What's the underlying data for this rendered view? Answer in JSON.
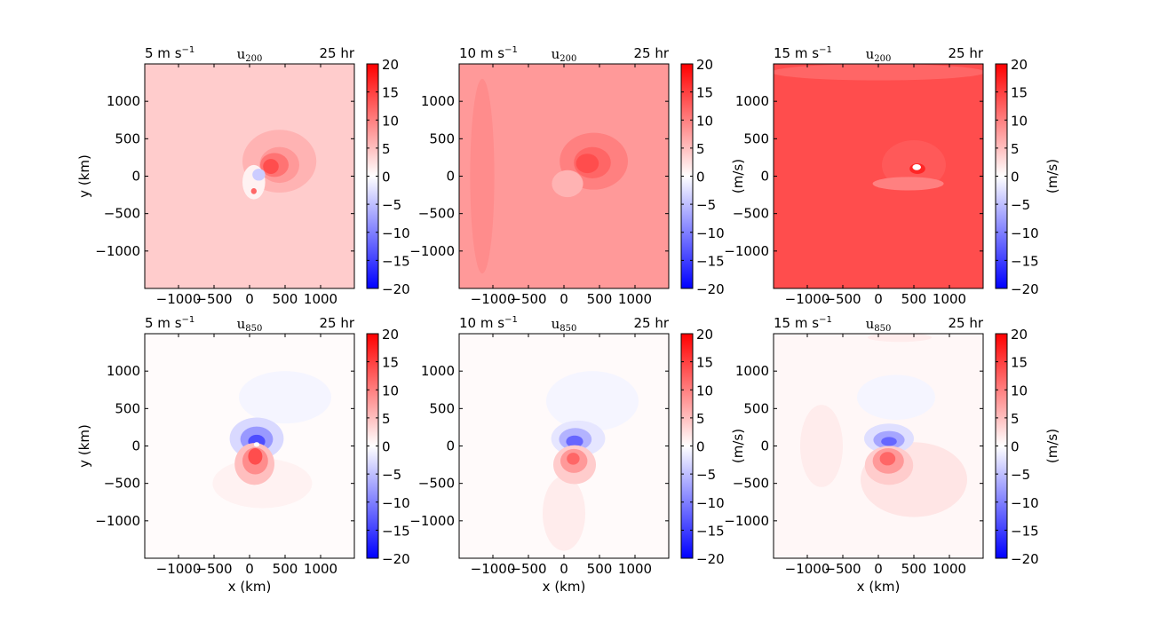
{
  "figure": {
    "cmap_stops": [
      "#0000ff",
      "#ffffff",
      "#ff0000"
    ]
  },
  "chart_data": [
    {
      "type": "heatmap",
      "left_label": "5 m s",
      "left_sup": "−1",
      "center_label": "u",
      "center_sub": "200",
      "right_label": "25 hr",
      "xlabel": "",
      "ylabel": "y (km)",
      "colorbar_label": "",
      "xlim": [
        -1475,
        1475
      ],
      "ylim": [
        -1500,
        1500
      ],
      "xticks": [
        -1000,
        -500,
        0,
        500,
        1000
      ],
      "yticks": [
        -1000,
        -500,
        0,
        500,
        1000
      ],
      "clim": [
        -20,
        20
      ],
      "cbar_ticks": [
        -20,
        -15,
        -10,
        -5,
        0,
        5,
        10,
        15,
        20
      ],
      "background_value": 4,
      "features": [
        {
          "x": 420,
          "y": 200,
          "rx": 520,
          "ry": 420,
          "value": 6
        },
        {
          "x": 420,
          "y": 150,
          "rx": 280,
          "ry": 240,
          "value": 8
        },
        {
          "x": 350,
          "y": 150,
          "rx": 200,
          "ry": 160,
          "value": 11
        },
        {
          "x": 300,
          "y": 130,
          "rx": 110,
          "ry": 100,
          "value": 14
        },
        {
          "x": 60,
          "y": -80,
          "rx": 160,
          "ry": 230,
          "value": 1
        },
        {
          "x": 130,
          "y": 20,
          "rx": 90,
          "ry": 80,
          "value": -4
        },
        {
          "x": 60,
          "y": -200,
          "rx": 40,
          "ry": 40,
          "value": 12
        }
      ]
    },
    {
      "type": "heatmap",
      "left_label": "10 m s",
      "left_sup": "−1",
      "center_label": "u",
      "center_sub": "200",
      "right_label": "25 hr",
      "xlabel": "",
      "ylabel": "",
      "colorbar_label": "(m/s)",
      "xlim": [
        -1475,
        1475
      ],
      "ylim": [
        -1500,
        1500
      ],
      "xticks": [
        -1000,
        -500,
        0,
        500,
        1000
      ],
      "yticks": [
        -1000,
        -500,
        0,
        500,
        1000
      ],
      "clim": [
        -20,
        20
      ],
      "cbar_ticks": [
        -20,
        -15,
        -10,
        -5,
        0,
        5,
        10,
        15,
        20
      ],
      "background_value": 8,
      "features": [
        {
          "x": -1150,
          "y": 0,
          "rx": 170,
          "ry": 1300,
          "value": 9
        },
        {
          "x": 420,
          "y": 200,
          "rx": 480,
          "ry": 380,
          "value": 10
        },
        {
          "x": 400,
          "y": 180,
          "rx": 260,
          "ry": 210,
          "value": 12
        },
        {
          "x": 330,
          "y": 170,
          "rx": 160,
          "ry": 130,
          "value": 14
        },
        {
          "x": 50,
          "y": -100,
          "rx": 220,
          "ry": 180,
          "value": 6
        }
      ]
    },
    {
      "type": "heatmap",
      "left_label": "15 m s",
      "left_sup": "−1",
      "center_label": "u",
      "center_sub": "200",
      "right_label": "25 hr",
      "xlabel": "",
      "ylabel": "",
      "colorbar_label": "(m/s)",
      "xlim": [
        -1475,
        1475
      ],
      "ylim": [
        -1500,
        1500
      ],
      "xticks": [
        -1000,
        -500,
        0,
        500,
        1000
      ],
      "yticks": [
        -1000,
        -500,
        0,
        500,
        1000
      ],
      "clim": [
        -20,
        20
      ],
      "cbar_ticks": [
        -20,
        -15,
        -10,
        -5,
        0,
        5,
        10,
        15,
        20
      ],
      "background_value": 14,
      "features": [
        {
          "x": 0,
          "y": 1390,
          "rx": 1500,
          "ry": 110,
          "value": 12
        },
        {
          "x": 500,
          "y": 150,
          "rx": 450,
          "ry": 330,
          "value": 13
        },
        {
          "x": 420,
          "y": -100,
          "rx": 500,
          "ry": 90,
          "value": 10
        },
        {
          "x": 550,
          "y": 100,
          "rx": 110,
          "ry": 70,
          "value": 17
        },
        {
          "x": 540,
          "y": 120,
          "rx": 60,
          "ry": 40,
          "value": 0
        }
      ]
    },
    {
      "type": "heatmap",
      "left_label": "5 m s",
      "left_sup": "−1",
      "center_label": "u",
      "center_sub": "850",
      "right_label": "25 hr",
      "xlabel": "x (km)",
      "ylabel": "y (km)",
      "colorbar_label": "",
      "xlim": [
        -1475,
        1475
      ],
      "ylim": [
        -1500,
        1500
      ],
      "xticks": [
        -1000,
        -500,
        0,
        500,
        1000
      ],
      "yticks": [
        -1000,
        -500,
        0,
        500,
        1000
      ],
      "clim": [
        -20,
        20
      ],
      "cbar_ticks": [
        -20,
        -15,
        -10,
        -5,
        0,
        5,
        10,
        15,
        20
      ],
      "background_value": 0.3,
      "features": [
        {
          "x": 500,
          "y": 650,
          "rx": 650,
          "ry": 350,
          "value": -0.8
        },
        {
          "x": 100,
          "y": 100,
          "rx": 380,
          "ry": 280,
          "value": -3
        },
        {
          "x": 100,
          "y": 90,
          "rx": 230,
          "ry": 170,
          "value": -8
        },
        {
          "x": 100,
          "y": 60,
          "rx": 120,
          "ry": 90,
          "value": -14
        },
        {
          "x": 180,
          "y": -500,
          "rx": 700,
          "ry": 330,
          "value": 1
        },
        {
          "x": 70,
          "y": -240,
          "rx": 280,
          "ry": 280,
          "value": 5
        },
        {
          "x": 80,
          "y": -200,
          "rx": 180,
          "ry": 180,
          "value": 9
        },
        {
          "x": 80,
          "y": -140,
          "rx": 100,
          "ry": 110,
          "value": 14
        },
        {
          "x": 100,
          "y": 20,
          "rx": 40,
          "ry": 30,
          "value": 0
        }
      ]
    },
    {
      "type": "heatmap",
      "left_label": "10 m s",
      "left_sup": "−1",
      "center_label": "u",
      "center_sub": "850",
      "right_label": "25 hr",
      "xlabel": "x (km)",
      "ylabel": "",
      "colorbar_label": "(m/s)",
      "xlim": [
        -1475,
        1475
      ],
      "ylim": [
        -1500,
        1500
      ],
      "xticks": [
        -1000,
        -500,
        0,
        500,
        1000
      ],
      "yticks": [
        -1000,
        -500,
        0,
        500,
        1000
      ],
      "clim": [
        -20,
        20
      ],
      "cbar_ticks": [
        -20,
        -15,
        -10,
        -5,
        0,
        5,
        10,
        15,
        20
      ],
      "background_value": 0.4,
      "features": [
        {
          "x": 400,
          "y": 600,
          "rx": 650,
          "ry": 400,
          "value": -0.8
        },
        {
          "x": 200,
          "y": 100,
          "rx": 380,
          "ry": 240,
          "value": -2
        },
        {
          "x": 160,
          "y": 90,
          "rx": 230,
          "ry": 150,
          "value": -6
        },
        {
          "x": 150,
          "y": 60,
          "rx": 120,
          "ry": 80,
          "value": -12
        },
        {
          "x": 0,
          "y": -900,
          "rx": 300,
          "ry": 500,
          "value": 1.5
        },
        {
          "x": 150,
          "y": -250,
          "rx": 300,
          "ry": 260,
          "value": 4
        },
        {
          "x": 140,
          "y": -200,
          "rx": 190,
          "ry": 160,
          "value": 8
        },
        {
          "x": 130,
          "y": -170,
          "rx": 90,
          "ry": 80,
          "value": 12
        }
      ]
    },
    {
      "type": "heatmap",
      "left_label": "15 m s",
      "left_sup": "−1",
      "center_label": "u",
      "center_sub": "850",
      "right_label": "25 hr",
      "xlabel": "x (km)",
      "ylabel": "",
      "colorbar_label": "(m/s)",
      "xlim": [
        -1475,
        1475
      ],
      "ylim": [
        -1500,
        1500
      ],
      "xticks": [
        -1000,
        -500,
        0,
        500,
        1000
      ],
      "yticks": [
        -1000,
        -500,
        0,
        500,
        1000
      ],
      "clim": [
        -20,
        20
      ],
      "cbar_ticks": [
        -20,
        -15,
        -10,
        -5,
        0,
        5,
        10,
        15,
        20
      ],
      "background_value": 0.6,
      "features": [
        {
          "x": 300,
          "y": 1450,
          "rx": 450,
          "ry": 60,
          "value": 1.5
        },
        {
          "x": -800,
          "y": 0,
          "rx": 300,
          "ry": 550,
          "value": 1.5
        },
        {
          "x": 500,
          "y": -450,
          "rx": 750,
          "ry": 500,
          "value": 2
        },
        {
          "x": 250,
          "y": 650,
          "rx": 550,
          "ry": 300,
          "value": -0.8
        },
        {
          "x": 150,
          "y": 100,
          "rx": 350,
          "ry": 200,
          "value": -2.5
        },
        {
          "x": 150,
          "y": 80,
          "rx": 220,
          "ry": 120,
          "value": -7
        },
        {
          "x": 150,
          "y": 60,
          "rx": 110,
          "ry": 60,
          "value": -12
        },
        {
          "x": 150,
          "y": -260,
          "rx": 340,
          "ry": 260,
          "value": 4
        },
        {
          "x": 140,
          "y": -200,
          "rx": 220,
          "ry": 170,
          "value": 8
        },
        {
          "x": 130,
          "y": -170,
          "rx": 110,
          "ry": 90,
          "value": 12
        }
      ]
    }
  ]
}
